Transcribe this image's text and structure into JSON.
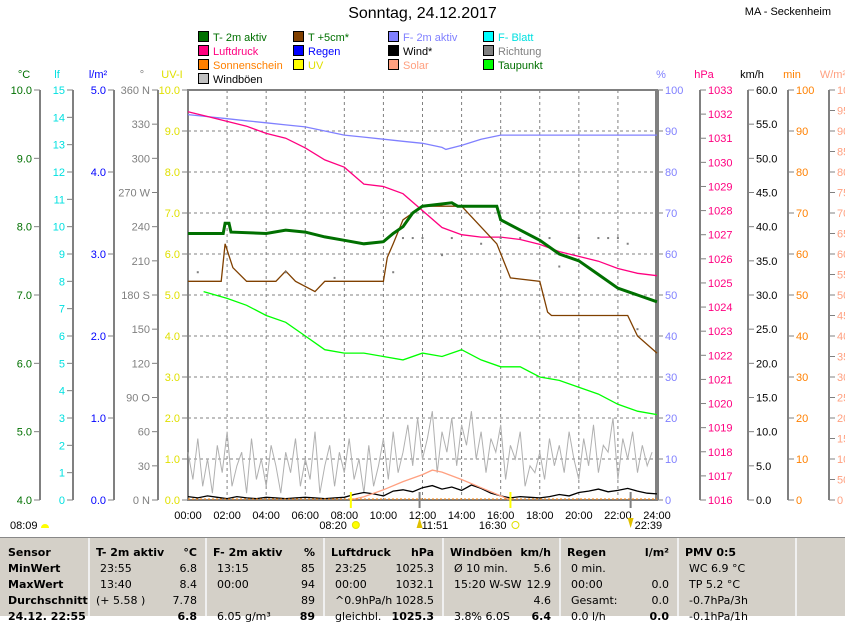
{
  "header": {
    "title": "Sonntag, 24.12.2017",
    "station": "MA - Seckenheim"
  },
  "legend": [
    {
      "label": "T- 2m aktiv",
      "color": "#007000",
      "text": "#007000"
    },
    {
      "label": "T +5cm*",
      "color": "#804000",
      "text": "#007000"
    },
    {
      "label": "F- 2m aktiv",
      "color": "#8080ff",
      "text": "#8080ff"
    },
    {
      "label": "F- Blatt",
      "color": "#00ffff",
      "text": "#00e0e0"
    },
    {
      "label": "Luftdruck",
      "color": "#ff0080",
      "text": "#ff0080"
    },
    {
      "label": "Regen",
      "color": "#0000ff",
      "text": "#0000ff"
    },
    {
      "label": "Wind*",
      "color": "#000000",
      "text": "#000000"
    },
    {
      "label": "Richtung",
      "color": "#808080",
      "text": "#808080"
    },
    {
      "label": "Sonnenschein",
      "color": "#ff8000",
      "text": "#ff8000"
    },
    {
      "label": "UV",
      "color": "#ffff00",
      "text": "#e0e000"
    },
    {
      "label": "Solar",
      "color": "#ffa080",
      "text": "#ffa080"
    },
    {
      "label": "Taupunkt",
      "color": "#00ff00",
      "text": "#007000"
    },
    {
      "label": "Windböen",
      "color": "#c0c0c0",
      "text": "#000000"
    }
  ],
  "chart_data": {
    "type": "line",
    "title": "Sonntag, 24.12.2017",
    "x_range_hours": [
      0,
      24
    ],
    "x_ticks": [
      "00:00",
      "02:00",
      "04:00",
      "06:00",
      "08:00",
      "10:00",
      "12:00",
      "14:00",
      "16:00",
      "18:00",
      "20:00",
      "22:00",
      "24:00"
    ],
    "axes": [
      {
        "id": "tc",
        "unit": "°C",
        "color": "#007000",
        "min": 4,
        "max": 10,
        "step": 1,
        "minor": 0.5,
        "fmt": 1,
        "labels": [
          "10.0",
          "9.0",
          "8.0",
          "7.0",
          "6.0",
          "5.0",
          "4.0"
        ]
      },
      {
        "id": "lf",
        "unit": "lf",
        "color": "#00e0e0",
        "min": 0,
        "max": 15,
        "step": 1,
        "labels": [
          "15",
          "14",
          "13",
          "12",
          "11",
          "10",
          "9",
          "8",
          "7",
          "6",
          "5",
          "4",
          "3",
          "2",
          "1",
          "0"
        ]
      },
      {
        "id": "rain",
        "unit": "l/m²",
        "color": "#0000ff",
        "min": 0,
        "max": 5,
        "step": 1,
        "labels": [
          "5.0",
          "4.0",
          "3.0",
          "2.0",
          "1.0",
          "0.0"
        ]
      },
      {
        "id": "dir",
        "unit": "°",
        "color": "#808080",
        "min": 0,
        "max": 360,
        "step": 30,
        "labels": [
          "360 N",
          "330",
          "300",
          "270 W",
          "240",
          "210",
          "180 S",
          "150",
          "120",
          "90 O",
          "60",
          "30",
          "0 N"
        ]
      },
      {
        "id": "uv",
        "unit": "UV-I",
        "color": "#e0e000",
        "min": 0,
        "max": 10,
        "step": 1,
        "labels": [
          "10.0",
          "9.0",
          "8.0",
          "7.0",
          "6.0",
          "5.0",
          "4.0",
          "3.0",
          "2.0",
          "1.0",
          "0.0"
        ]
      },
      {
        "id": "hum",
        "unit": "%",
        "color": "#8080ff",
        "min": 0,
        "max": 100,
        "step": 10,
        "labels": [
          "100",
          "90",
          "80",
          "70",
          "60",
          "50",
          "40",
          "30",
          "20",
          "10",
          "0"
        ]
      },
      {
        "id": "hpa",
        "unit": "hPa",
        "color": "#ff0080",
        "min": 1016,
        "max": 1033,
        "step": 1,
        "labels": [
          "1033",
          "1032",
          "1031",
          "1030",
          "1029",
          "1028",
          "1027",
          "1026",
          "1025",
          "1024",
          "1023",
          "1022",
          "1021",
          "1020",
          "1019",
          "1018",
          "1017",
          "1016"
        ]
      },
      {
        "id": "kmh",
        "unit": "km/h",
        "color": "#000000",
        "min": 0,
        "max": 60,
        "step": 5,
        "labels": [
          "60.0",
          "55.0",
          "50.0",
          "45.0",
          "40.0",
          "35.0",
          "30.0",
          "25.0",
          "20.0",
          "15.0",
          "10.0",
          "5.0",
          "0.0"
        ]
      },
      {
        "id": "min",
        "unit": "min",
        "color": "#ff8000",
        "min": 0,
        "max": 100,
        "step": 10,
        "labels": [
          "100",
          "90",
          "80",
          "70",
          "60",
          "50",
          "40",
          "30",
          "20",
          "10",
          "0"
        ]
      },
      {
        "id": "wm2",
        "unit": "W/m²",
        "color": "#ffa080",
        "min": 0,
        "max": 1000,
        "step": 50,
        "labels": [
          "1000",
          "950",
          "900",
          "850",
          "800",
          "750",
          "700",
          "650",
          "600",
          "550",
          "500",
          "450",
          "400",
          "350",
          "300",
          "250",
          "200",
          "150",
          "100",
          "50",
          "0"
        ]
      }
    ],
    "series": [
      {
        "name": "Windböen",
        "axis": "kmh",
        "color": "#b0b0b0",
        "x_step": 0.25,
        "values": [
          7,
          3,
          9,
          2,
          6,
          1,
          8,
          4,
          10,
          2,
          5,
          7,
          1,
          9,
          3,
          6,
          2,
          8,
          5,
          1,
          7,
          4,
          9,
          2,
          6,
          3,
          10,
          1,
          5,
          8,
          2,
          7,
          4,
          9,
          3,
          6,
          1,
          8,
          2,
          5,
          9,
          3,
          10,
          4,
          7,
          11,
          5,
          12,
          6,
          9,
          13,
          4,
          10,
          7,
          12,
          5,
          11,
          8,
          13,
          6,
          10,
          4,
          9,
          7,
          11,
          3,
          8,
          6,
          10,
          2,
          5,
          4,
          7,
          3,
          9,
          5,
          8,
          4,
          10,
          6,
          3,
          9,
          5,
          11,
          4,
          8,
          7,
          12,
          3,
          9,
          6,
          10,
          4,
          8,
          5,
          7
        ]
      },
      {
        "name": "Wind*",
        "axis": "kmh",
        "color": "#000000",
        "x_step": 0.5,
        "values": [
          0.5,
          0.3,
          0.6,
          0.4,
          0.2,
          0.5,
          0.3,
          0.2,
          0.4,
          0.3,
          0.2,
          0.3,
          0.4,
          0.3,
          0.2,
          0.3,
          0.4,
          0.8,
          1.1,
          0.9,
          0.6,
          1.3,
          1.5,
          1.2,
          1.8,
          2.1,
          1.6,
          1.9,
          1.4,
          2.2,
          1.7,
          1.0,
          0.6,
          0.3,
          0.5,
          0.4,
          0.3,
          0.5,
          0.8,
          0.6,
          1.1,
          1.3,
          1.6,
          1.2,
          1.4,
          1.7,
          1.3,
          1.0,
          0.9
        ]
      },
      {
        "name": "Solar",
        "axis": "wm2",
        "color": "#ffa080",
        "x": [
          8.3,
          9,
          10,
          11,
          12,
          12.5,
          13,
          14,
          15,
          16,
          16.5
        ],
        "values": [
          0,
          8,
          25,
          45,
          62,
          73,
          68,
          50,
          30,
          10,
          0
        ]
      },
      {
        "name": "F- 2m aktiv",
        "axis": "hum",
        "color": "#8080ff",
        "x": [
          0,
          1,
          2,
          3,
          4,
          5,
          6,
          7,
          8,
          9,
          10,
          11,
          12,
          13,
          13.2,
          14,
          15,
          16,
          18,
          20,
          22,
          24
        ],
        "values": [
          94,
          93.5,
          93,
          92.5,
          92,
          91.5,
          91,
          90,
          89,
          88.5,
          88,
          87.5,
          87,
          86,
          85.5,
          86.5,
          88,
          89,
          89,
          89,
          89,
          89
        ]
      },
      {
        "name": "Luftdruck",
        "axis": "hpa",
        "color": "#ff0080",
        "x": [
          0,
          1,
          2,
          3,
          4,
          5,
          6,
          7,
          8,
          9,
          10,
          11,
          12,
          13,
          14,
          15,
          16,
          17,
          18,
          19,
          20,
          21,
          22,
          23,
          24
        ],
        "values": [
          1032.1,
          1031.9,
          1031.7,
          1031.5,
          1031.2,
          1031.0,
          1030.6,
          1030.1,
          1029.8,
          1029.1,
          1029.0,
          1028.7,
          1028.0,
          1027.3,
          1027.0,
          1026.9,
          1026.9,
          1026.8,
          1026.6,
          1026.3,
          1026.1,
          1025.9,
          1025.6,
          1025.4,
          1025.3
        ]
      },
      {
        "name": "Taupunkt",
        "axis": "tc",
        "color": "#00ff00",
        "x": [
          0.8,
          2,
          3,
          4,
          5,
          6,
          6.5,
          7,
          8,
          9,
          10,
          11,
          12,
          13,
          14,
          15,
          16,
          17,
          18,
          19,
          20,
          21,
          22,
          23,
          24
        ],
        "values": [
          7.05,
          6.95,
          6.85,
          6.7,
          6.6,
          6.4,
          6.3,
          6.2,
          6.15,
          6.15,
          6.1,
          6.05,
          6.15,
          6.1,
          6.2,
          6.05,
          5.95,
          5.95,
          5.8,
          5.75,
          5.65,
          5.55,
          5.4,
          5.3,
          5.25
        ]
      },
      {
        "name": "T +5cm*",
        "axis": "tc",
        "color": "#804000",
        "x": [
          0,
          1.7,
          1.9,
          2.3,
          3,
          4.5,
          5,
          5.5,
          6.5,
          7,
          8,
          10,
          10.2,
          10.5,
          11,
          12,
          13.8,
          14,
          15.8,
          16.5,
          18,
          18.4,
          18.6,
          22.5,
          23,
          24
        ],
        "values": [
          7.2,
          7.2,
          7.75,
          7.4,
          7.2,
          7.2,
          7.35,
          7.2,
          7.05,
          7.2,
          7.2,
          7.2,
          7.55,
          7.75,
          8.1,
          8.3,
          8.3,
          8.3,
          7.75,
          7.25,
          7.2,
          6.75,
          6.7,
          6.7,
          6.4,
          6.15
        ]
      },
      {
        "name": "T- 2m aktiv",
        "axis": "tc",
        "color": "#007000",
        "x": [
          0,
          1.8,
          1.9,
          2.1,
          2.2,
          4,
          5,
          6,
          7,
          8,
          9,
          10,
          10.5,
          11,
          11.5,
          12,
          13.5,
          13.8,
          15.8,
          16,
          17,
          18,
          19,
          20,
          21,
          22,
          23,
          24
        ],
        "values": [
          7.9,
          7.9,
          8.05,
          8.05,
          7.92,
          7.9,
          7.95,
          7.92,
          7.85,
          7.8,
          7.75,
          7.78,
          7.9,
          8.0,
          8.2,
          8.3,
          8.35,
          8.3,
          8.3,
          8.1,
          7.95,
          7.8,
          7.6,
          7.5,
          7.3,
          7.1,
          7.0,
          6.9
        ]
      },
      {
        "name": "Richtung",
        "axis": "dir",
        "color": "#808080",
        "type": "scatter",
        "x": [
          0.5,
          5,
          7.5,
          10.5,
          11,
          11.5,
          12,
          13,
          13.5,
          15,
          16,
          17,
          18.5,
          19,
          20,
          21,
          21.5,
          22,
          22.5,
          23
        ],
        "values": [
          200,
          200,
          195,
          200,
          230,
          230,
          230,
          215,
          230,
          225,
          230,
          230,
          230,
          205,
          230,
          230,
          230,
          230,
          225,
          150
        ]
      }
    ],
    "sun": {
      "rise": "08:20",
      "noon": "11:51",
      "set": "16:30"
    },
    "moon": {
      "rise": "08:09",
      "set": "22:39"
    }
  },
  "table": {
    "row_labels": [
      "Sensor",
      "MinWert",
      "MaxWert",
      "Durchschnitt",
      "24.12. 22:55"
    ],
    "columns": [
      {
        "head": "T- 2m aktiv",
        "unit": "°C",
        "rows": [
          [
            "23:55",
            "6.8"
          ],
          [
            "13:40",
            "8.4"
          ],
          [
            "(+ 5.58 )",
            "7.78"
          ],
          [
            "",
            "6.8"
          ]
        ]
      },
      {
        "head": "F- 2m aktiv",
        "unit": "%",
        "rows": [
          [
            "13:15",
            "85"
          ],
          [
            "00:00",
            "94"
          ],
          [
            "",
            "89"
          ],
          [
            "6.05 g/m³",
            "89"
          ]
        ]
      },
      {
        "head": "Luftdruck",
        "unit": "hPa",
        "rows": [
          [
            "23:25",
            "1025.3"
          ],
          [
            "00:00",
            "1032.1"
          ],
          [
            "^0.9hPa/h",
            "1028.5"
          ],
          [
            "gleichbl.",
            "1025.3"
          ]
        ]
      },
      {
        "head": "Windböen",
        "unit": "km/h",
        "rows": [
          [
            "Ø 10 min.",
            "5.6"
          ],
          [
            "15:20   W-SW",
            "12.9"
          ],
          [
            "",
            "4.6"
          ],
          [
            "3.8% 6.0S",
            "6.4"
          ]
        ]
      },
      {
        "head": "Regen",
        "unit": "l/m²",
        "rows": [
          [
            "0 min.",
            ""
          ],
          [
            "00:00",
            "0.0"
          ],
          [
            "Gesamt:",
            "0.0"
          ],
          [
            "0.0 l/h",
            "0.0"
          ]
        ]
      },
      {
        "head": "PMV 0:5",
        "unit": "",
        "rows": [
          [
            "WC 6.9 °C",
            ""
          ],
          [
            "TP 5.2 °C",
            ""
          ],
          [
            "-0.7hPa/3h",
            ""
          ],
          [
            "-0.1hPa/1h",
            ""
          ]
        ]
      }
    ]
  }
}
